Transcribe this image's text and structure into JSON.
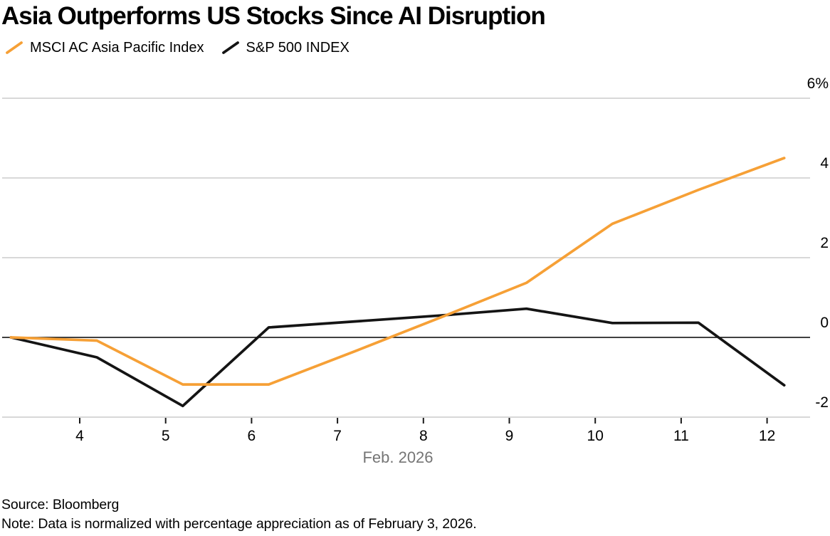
{
  "chart_data": {
    "type": "line",
    "title": "Asia Outperforms US Stocks Since AI Disruption",
    "xlabel": "Feb. 2026",
    "source": "Source: Bloomberg",
    "note": "Note: Data is normalized with percentage appreciation as of February 3, 2026.",
    "legend_position": "top-left",
    "grid": "horizontal",
    "grid_color": "#D8D8D8",
    "zero_line_color": "#000000",
    "tick_color": "#1A1A1A",
    "xlabel_color": "#757575",
    "x_axis": {
      "tick_values": [
        4,
        5,
        6,
        7,
        8,
        9,
        10,
        11,
        12
      ],
      "tick_labels": [
        "4",
        "5",
        "6",
        "7",
        "8",
        "9",
        "10",
        "11",
        "12"
      ],
      "range": [
        3.1,
        12.5
      ]
    },
    "y_axis": {
      "tick_values": [
        6,
        4,
        2,
        0,
        -2
      ],
      "tick_labels": [
        "6%",
        "4",
        "2",
        "0",
        "-2"
      ],
      "range": [
        -2.4,
        6.7
      ],
      "unit": "percent",
      "zero_line": true
    },
    "x": [
      3.2,
      4.2,
      5.2,
      6.2,
      7.2,
      8.2,
      9.2,
      10.2,
      11.2,
      12.2
    ],
    "series": [
      {
        "name": "MSCI AC Asia Pacific Index",
        "color": "#F6A036",
        "values": [
          0.0,
          -0.08,
          -1.18,
          -1.18,
          -0.35,
          0.5,
          1.37,
          2.85,
          3.7,
          4.5
        ]
      },
      {
        "name": "S&P 500 INDEX",
        "color": "#141414",
        "values": [
          0.0,
          -0.5,
          -1.72,
          0.25,
          0.4,
          0.55,
          0.72,
          0.36,
          0.37,
          -1.2
        ]
      }
    ]
  }
}
